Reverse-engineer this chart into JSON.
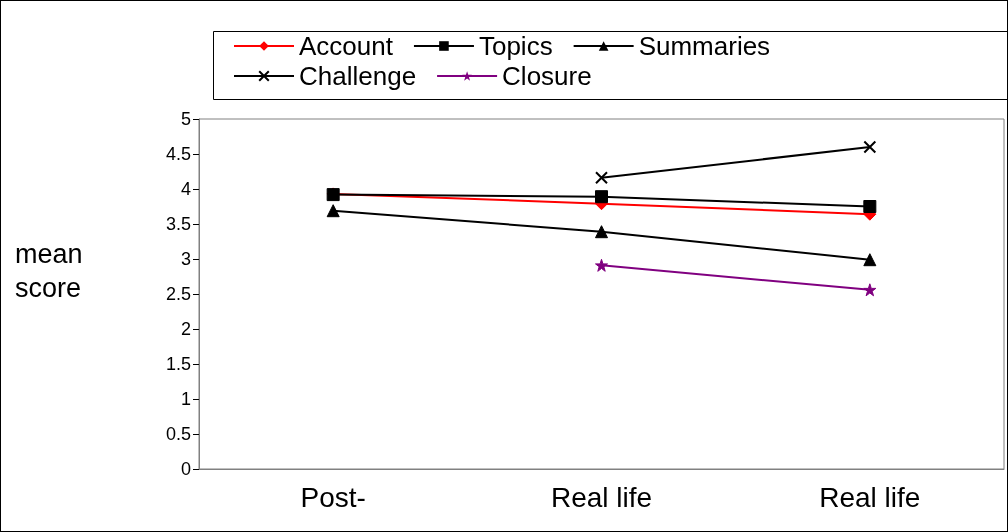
{
  "chart_data": {
    "type": "line",
    "ylabel": "mean score",
    "categories": [
      "Post-",
      "Real life",
      "Real life"
    ],
    "ylim": [
      0,
      5
    ],
    "yticks": [
      0,
      0.5,
      1,
      1.5,
      2,
      2.5,
      3,
      3.5,
      4,
      4.5,
      5
    ],
    "grid": false,
    "legend": "top",
    "series": [
      {
        "name": "Account",
        "color": "#ff0000",
        "marker": "diamond",
        "values": [
          3.93,
          3.79,
          3.64
        ]
      },
      {
        "name": "Topics",
        "color": "#000000",
        "marker": "square",
        "values": [
          3.92,
          3.89,
          3.75
        ]
      },
      {
        "name": "Summaries",
        "color": "#000000",
        "marker": "triangle",
        "values": [
          3.69,
          3.39,
          2.99
        ]
      },
      {
        "name": "Challenge",
        "color": "#000000",
        "marker": "cross",
        "values": [
          null,
          4.16,
          4.6
        ]
      },
      {
        "name": "Closure",
        "color": "#800080",
        "marker": "star",
        "values": [
          null,
          2.91,
          2.56
        ]
      }
    ]
  }
}
